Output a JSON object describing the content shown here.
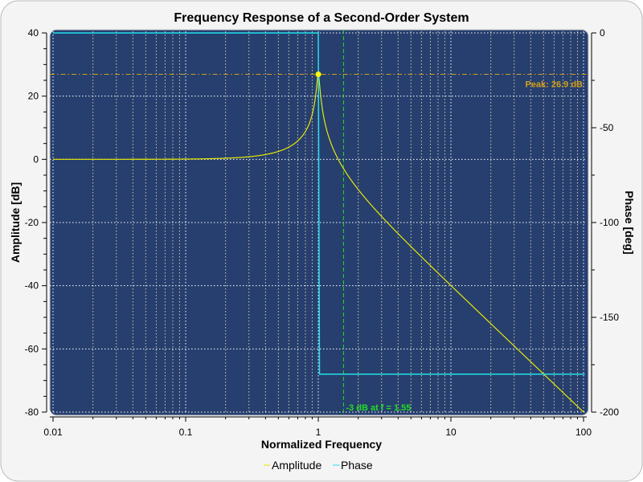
{
  "chart_data": {
    "type": "line",
    "title": "Frequency Response of a Second-Order System",
    "xlabel": "Normalized Frequency",
    "ylabel": "Amplitude [dB]",
    "y2label": "Phase [deg]",
    "xscale": "log",
    "xlim": [
      0.01,
      100
    ],
    "ylim": [
      -80,
      40
    ],
    "y2lim": [
      -200,
      0
    ],
    "xticks": [
      0.01,
      0.1,
      1,
      10,
      100
    ],
    "xtick_labels": [
      "0.01",
      "0.1",
      "1",
      "10",
      "100"
    ],
    "yticks": [
      40,
      20,
      0,
      -20,
      -40,
      -60,
      -80
    ],
    "ytick_labels": [
      "40",
      "20",
      "0",
      "-20",
      "-40",
      "-60",
      "-80"
    ],
    "y2ticks": [
      0,
      -50,
      -100,
      -150,
      -200
    ],
    "y2tick_labels": [
      "0",
      "-50",
      "-100",
      "-150",
      "-200"
    ],
    "grid": true,
    "legend_position": "bottom",
    "series": [
      {
        "name": "Amplitude",
        "color": "#e8e800",
        "model": "second-order",
        "natural_frequency": 1,
        "damping_ratio": 0.0226,
        "axis": "left",
        "points": [
          [
            0.01,
            0
          ],
          [
            0.1,
            0.09
          ],
          [
            0.5,
            2.5
          ],
          [
            0.9,
            14.3
          ],
          [
            1,
            26.9
          ],
          [
            1.55,
            -3
          ],
          [
            2,
            -9.5
          ],
          [
            10,
            -39.9
          ],
          [
            100,
            -80
          ]
        ]
      },
      {
        "name": "Phase",
        "color": "#22e0e8",
        "axis": "right",
        "points": [
          [
            0.01,
            0
          ],
          [
            1,
            0
          ],
          [
            1,
            -180
          ],
          [
            100,
            -180
          ]
        ]
      }
    ],
    "annotations": [
      {
        "text": "Peak: 26.9 dB",
        "x": 1,
        "y": 26.9,
        "color": "#d4a017"
      },
      {
        "text": "-3 dB at f = 1.55",
        "x": 1.55,
        "color": "#22dd22"
      }
    ]
  },
  "background": {
    "plot": "#263f6f",
    "page": "#f4f4f4"
  }
}
